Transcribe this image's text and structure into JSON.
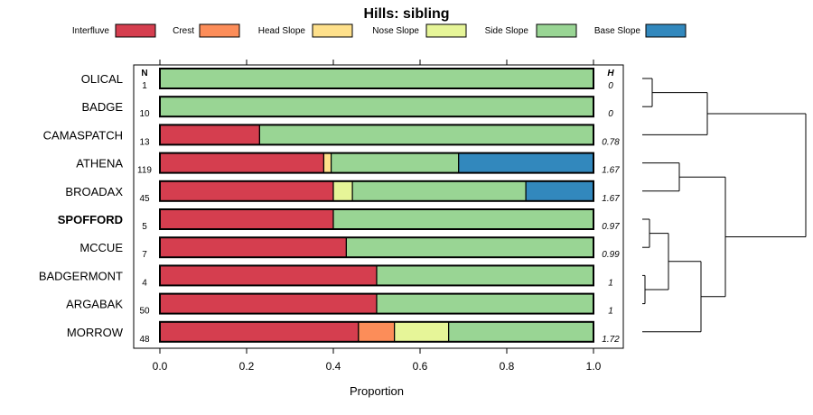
{
  "chart_data": {
    "type": "bar",
    "orientation": "horizontal",
    "stacked": true,
    "title": "Hills: sibling",
    "xlabel": "Proportion",
    "ylabel": "",
    "xlim": [
      0,
      1
    ],
    "xticks": [
      "0.0",
      "0.2",
      "0.4",
      "0.6",
      "0.8",
      "1.0"
    ],
    "n_header": "N",
    "h_header": "H",
    "legend": [
      {
        "name": "Interfluve",
        "color": "#d53e4f"
      },
      {
        "name": "Crest",
        "color": "#fc8d59"
      },
      {
        "name": "Head Slope",
        "color": "#fee08b"
      },
      {
        "name": "Nose Slope",
        "color": "#e6f598"
      },
      {
        "name": "Side Slope",
        "color": "#99d594"
      },
      {
        "name": "Base Slope",
        "color": "#3288bd"
      }
    ],
    "categories": [
      "OLICAL",
      "BADGE",
      "CAMASPATCH",
      "ATHENA",
      "BROADAX",
      "SPOFFORD",
      "MCCUE",
      "BADGERMONT",
      "ARGABAK",
      "MORROW"
    ],
    "bold_category": "SPOFFORD",
    "n": [
      "1",
      "10",
      "13",
      "119",
      "45",
      "5",
      "7",
      "4",
      "50",
      "48"
    ],
    "h": [
      "0",
      "0",
      "0.78",
      "1.67",
      "1.67",
      "0.97",
      "0.99",
      "1",
      "1",
      "1.72"
    ],
    "series": [
      {
        "name": "Interfluve",
        "values": [
          0,
          0,
          0.23,
          0.378,
          0.4,
          0.4,
          0.43,
          0.5,
          0.5,
          0.458
        ]
      },
      {
        "name": "Crest",
        "values": [
          0,
          0,
          0,
          0,
          0,
          0,
          0,
          0,
          0,
          0.083
        ]
      },
      {
        "name": "Head Slope",
        "values": [
          0,
          0,
          0,
          0.017,
          0,
          0,
          0,
          0,
          0,
          0
        ]
      },
      {
        "name": "Nose Slope",
        "values": [
          0,
          0,
          0,
          0,
          0.044,
          0,
          0,
          0,
          0,
          0.125
        ]
      },
      {
        "name": "Side Slope",
        "values": [
          1,
          1,
          0.77,
          0.294,
          0.4,
          0.6,
          0.57,
          0.5,
          0.5,
          0.334
        ]
      },
      {
        "name": "Base Slope",
        "values": [
          0,
          0,
          0,
          0.311,
          0.156,
          0,
          0,
          0,
          0,
          0
        ]
      }
    ],
    "dendrogram": {
      "merges": [
        {
          "a": "OLICAL",
          "b": "BADGE",
          "height": 0
        },
        {
          "a": "OLICAL+BADGE",
          "b": "CAMASPATCH",
          "height": 0.08
        },
        {
          "a": "ATHENA",
          "b": "BROADAX",
          "height": 0.04
        },
        {
          "a": "SPOFFORD",
          "b": "MCCUE",
          "height": 0.01
        },
        {
          "a": "BADGERMONT",
          "b": "ARGABAK",
          "height": 0.005
        },
        {
          "a": "SPOFFORD+MCCUE",
          "b": "BADGERMONT+ARGABAK",
          "height": 0.03
        },
        {
          "a": "SPOFFORD..ARGABAK",
          "b": "MORROW",
          "height": 0.07
        },
        {
          "a": "ATHENA+BROADAX",
          "b": "SPOFFORD..MORROW",
          "height": 0.12
        },
        {
          "a": "OLICAL..CAMASPATCH",
          "b": "ATHENA..MORROW",
          "height": 0.25
        }
      ]
    }
  }
}
